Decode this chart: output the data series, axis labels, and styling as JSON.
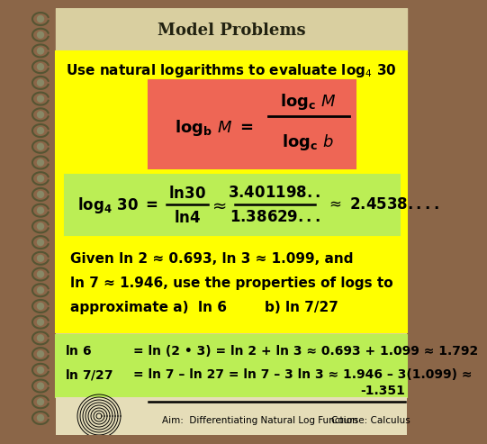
{
  "bg_color": "#8B6648",
  "header_bg": "#D9CFA0",
  "title": "Model Problems",
  "yellow_bg": "#FFFF00",
  "lightgreen_bg": "#BBEE55",
  "red_bg": "#EE6655",
  "footer_bg": "#E5DDB8",
  "footer_text": "Aim:  Differentiating Natural Log Function",
  "footer_course": "Course: Calculus",
  "given_text1": "Given ln 2 ≈ 0.693, ln 3 ≈ 1.099, and",
  "given_text2": "ln 7 ≈ 1.946, use the properties of logs to",
  "given_text3": "approximate a)  ln 6        b) ln 7/27",
  "sol1a": "ln 6",
  "sol1b": "= ln (2 • 3) = ln 2 + ln 3 ≈ 0.693 + 1.099 ≈ 1.792",
  "sol2a_l": "ln 7/27",
  "sol2a_r": "= ln 7 – ln 27 = ln 7 – 3 ln 3 ≈ 1.946 – 3(1.099) ≈",
  "sol2b": "-1.351"
}
